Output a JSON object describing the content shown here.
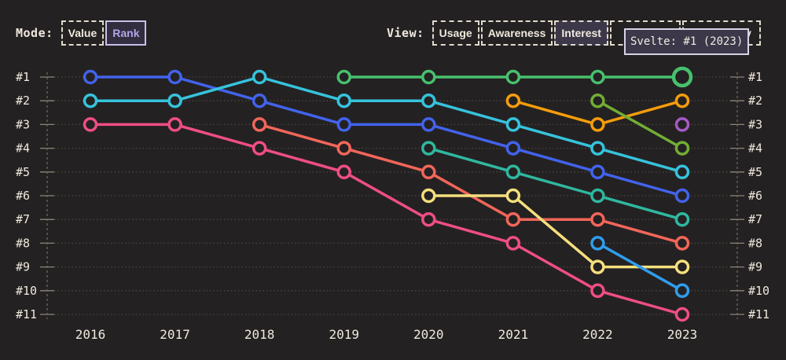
{
  "mode": {
    "label": "Mode:",
    "options": [
      {
        "label": "Value",
        "selected": false
      },
      {
        "label": "Rank",
        "selected": true
      }
    ]
  },
  "view": {
    "label": "View:",
    "options": [
      {
        "label": "Usage",
        "selected": false
      },
      {
        "label": "Awareness",
        "selected": false
      },
      {
        "label": "Interest",
        "selected": true
      },
      {
        "label": "",
        "selected": false
      },
      {
        "label": "ty",
        "selected": false
      }
    ]
  },
  "tooltip": {
    "text": "Svelte: #1 (2023)"
  },
  "colors": {
    "background": "#242122",
    "text": "#efe9dd",
    "grid_dotted": "#4a453f",
    "axis_dashed": "#6e675d",
    "tick": "#8d8578",
    "button_border": "#e0d9cc",
    "selected_mode_border": "#c9bfe8",
    "selected_mode_text": "#b4a4e6",
    "selected_mode_bg": "#322e3f",
    "selected_view_bg": "#3d3849",
    "tooltip_bg": "#3c3849",
    "tooltip_border": "#d8d2e6"
  },
  "chart_data": {
    "type": "line",
    "subtype": "bump-rank-chart",
    "x_labels": [
      "2016",
      "2017",
      "2018",
      "2019",
      "2020",
      "2021",
      "2022",
      "2023"
    ],
    "rank_labels": [
      "#1",
      "#2",
      "#3",
      "#4",
      "#5",
      "#6",
      "#7",
      "#8",
      "#9",
      "#10",
      "#11"
    ],
    "y_axis": "rank (1 = top, 11 = bottom), labels shown on both left and right sides",
    "grid": "dotted horizontal line per rank, dashed vertical axis lines at both ends",
    "legend": "none visible",
    "series": [
      {
        "id": "blue",
        "color": "#4263eb",
        "ranks": [
          1,
          1,
          2,
          3,
          3,
          4,
          5,
          6
        ]
      },
      {
        "id": "cyan",
        "color": "#36c3dc",
        "ranks": [
          2,
          2,
          1,
          2,
          2,
          3,
          4,
          5
        ]
      },
      {
        "id": "pink",
        "color": "#ef4e85",
        "ranks": [
          3,
          3,
          4,
          5,
          7,
          8,
          10,
          11
        ]
      },
      {
        "id": "salmon",
        "color": "#f2665a",
        "ranks": [
          null,
          null,
          3,
          4,
          5,
          7,
          7,
          8
        ]
      },
      {
        "id": "teal",
        "color": "#2fb89f",
        "ranks": [
          null,
          null,
          null,
          null,
          4,
          5,
          6,
          7
        ]
      },
      {
        "id": "yellow",
        "color": "#f4df7d",
        "ranks": [
          null,
          null,
          null,
          null,
          6,
          6,
          9,
          9
        ]
      },
      {
        "id": "amber",
        "color": "#f49d0b",
        "ranks": [
          null,
          null,
          null,
          null,
          null,
          2,
          3,
          2
        ]
      },
      {
        "id": "lime",
        "color": "#72ae35",
        "ranks": [
          null,
          null,
          null,
          null,
          null,
          null,
          2,
          4
        ]
      },
      {
        "id": "lightblue",
        "color": "#2f9ded",
        "ranks": [
          null,
          null,
          null,
          null,
          null,
          null,
          8,
          10
        ]
      },
      {
        "id": "purple",
        "color": "#a55bc6",
        "ranks": [
          null,
          null,
          null,
          null,
          null,
          null,
          null,
          3
        ]
      },
      {
        "id": "svelte",
        "color": "#47c16e",
        "ranks": [
          null,
          null,
          null,
          1,
          1,
          1,
          1,
          1
        ]
      }
    ],
    "highlight": {
      "series": "svelte",
      "x_label": "2023",
      "rank": 1,
      "tooltip": "Svelte: #1 (2023)"
    }
  }
}
